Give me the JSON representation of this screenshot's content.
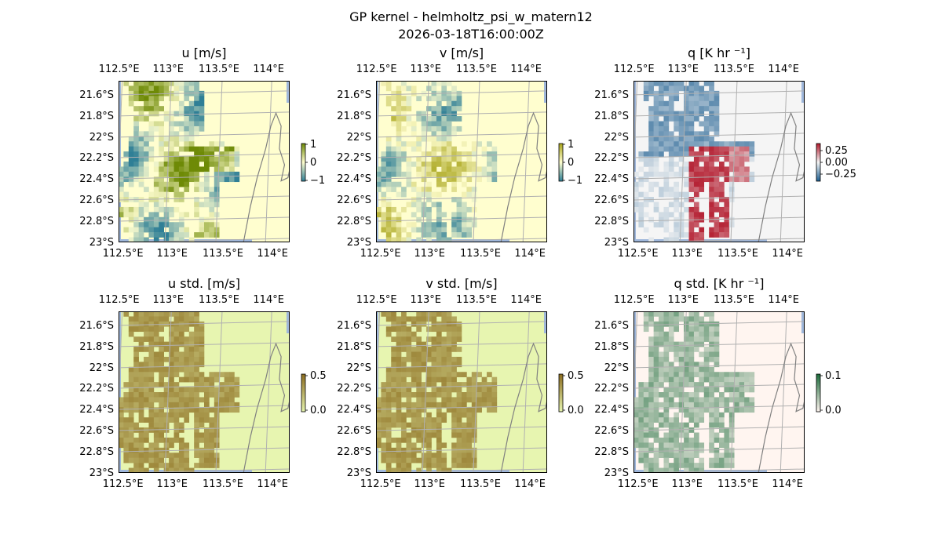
{
  "figure": {
    "title": "GP kernel - helmholtz_psi_w_matern12",
    "subtitle": "2026-03-18T16:00:00Z"
  },
  "chart_data": [
    {
      "type": "heatmap",
      "id": "u",
      "title": "u [m/s]",
      "x_ticks": [
        "112.5°E",
        "113°E",
        "113.5°E",
        "114°E"
      ],
      "y_ticks": [
        "21.6°S",
        "21.8°S",
        "22°S",
        "22.2°S",
        "22.4°S",
        "22.6°S",
        "22.8°S",
        "23°S"
      ],
      "colorbar": {
        "ticks": [
          "1",
          "0",
          "−1"
        ],
        "range": [
          -1,
          1
        ],
        "colors": [
          "#2f7f96",
          "#fffecf",
          "#6e8a06"
        ]
      },
      "background": "#fffecf",
      "field": "u"
    },
    {
      "type": "heatmap",
      "id": "v",
      "title": "v [m/s]",
      "x_ticks": [
        "112.5°E",
        "113°E",
        "113.5°E",
        "114°E"
      ],
      "y_ticks": [
        "21.6°S",
        "21.8°S",
        "22°S",
        "22.2°S",
        "22.4°S",
        "22.6°S",
        "22.8°S",
        "23°S"
      ],
      "colorbar": {
        "ticks": [
          "1",
          "0",
          "−1"
        ],
        "range": [
          -1,
          1
        ],
        "colors": [
          "#2f7f96",
          "#fffecf",
          "#a9a51b"
        ]
      },
      "background": "#fffecf",
      "field": "v"
    },
    {
      "type": "heatmap",
      "id": "q",
      "title": "q [K hr ⁻¹]",
      "x_ticks": [
        "112.5°E",
        "113°E",
        "113.5°E",
        "114°E"
      ],
      "y_ticks": [
        "21.6°S",
        "21.8°S",
        "22°S",
        "22.2°S",
        "22.4°S",
        "22.6°S",
        "22.8°S",
        "23°S"
      ],
      "colorbar": {
        "ticks": [
          "0.25",
          "0.00",
          "−0.25"
        ],
        "range": [
          -0.3,
          0.3
        ],
        "colors": [
          "#1a5c8f",
          "#f5f5f5",
          "#b2182b"
        ]
      },
      "background": "#f5f5f5",
      "field": "q"
    },
    {
      "type": "heatmap",
      "id": "u_std",
      "title": "u std. [m/s]",
      "x_ticks": [
        "112.5°E",
        "113°E",
        "113.5°E",
        "114°E"
      ],
      "y_ticks": [
        "21.6°S",
        "21.8°S",
        "22°S",
        "22.2°S",
        "22.4°S",
        "22.6°S",
        "22.8°S",
        "23°S"
      ],
      "colorbar": {
        "ticks": [
          "0.5",
          "0.0"
        ],
        "range": [
          0,
          0.5
        ],
        "colors": [
          "#e7f5b0",
          "#8c6d1f"
        ]
      },
      "background": "#e7f5b0",
      "field": "u_std"
    },
    {
      "type": "heatmap",
      "id": "v_std",
      "title": "v std. [m/s]",
      "x_ticks": [
        "112.5°E",
        "113°E",
        "113.5°E",
        "114°E"
      ],
      "y_ticks": [
        "21.6°S",
        "21.8°S",
        "22°S",
        "22.2°S",
        "22.4°S",
        "22.6°S",
        "22.8°S",
        "23°S"
      ],
      "colorbar": {
        "ticks": [
          "0.5",
          "0.0"
        ],
        "range": [
          0,
          0.5
        ],
        "colors": [
          "#e7f5b0",
          "#8c6d1f"
        ]
      },
      "background": "#e7f5b0",
      "field": "v_std"
    },
    {
      "type": "heatmap",
      "id": "q_std",
      "title": "q std. [K hr ⁻¹]",
      "x_ticks": [
        "112.5°E",
        "113°E",
        "113.5°E",
        "114°E"
      ],
      "y_ticks": [
        "21.6°S",
        "21.8°S",
        "22°S",
        "22.2°S",
        "22.4°S",
        "22.6°S",
        "22.8°S",
        "23°S"
      ],
      "colorbar": {
        "ticks": [
          "0.1",
          "0.0"
        ],
        "range": [
          0,
          0.1
        ],
        "colors": [
          "#fff5f0",
          "#1b6b3a"
        ]
      },
      "background": "#fff5f0",
      "field": "q_std"
    }
  ],
  "colors": {
    "ocean_edge": "#9fb7db",
    "coastline": "#808080",
    "gridline": "#b0b0b0"
  }
}
